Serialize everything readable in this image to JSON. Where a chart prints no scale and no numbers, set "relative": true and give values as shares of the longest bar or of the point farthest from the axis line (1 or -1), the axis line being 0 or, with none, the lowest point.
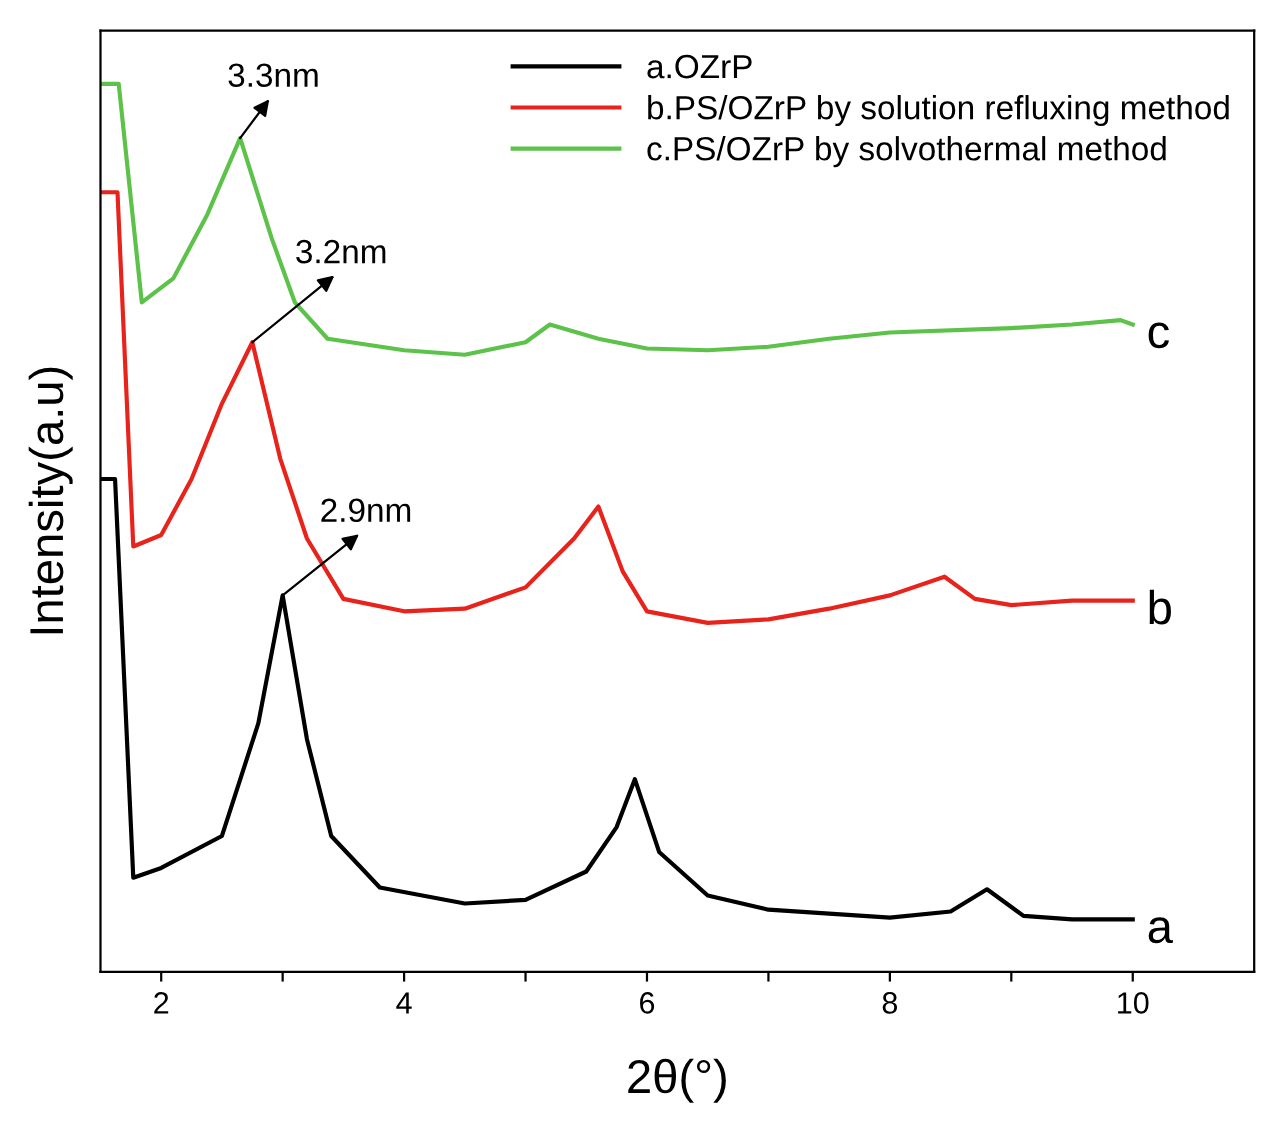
{
  "chart_data": {
    "type": "line",
    "relative": true,
    "xlabel": "2θ(°)",
    "ylabel": "Intensity(a.u)",
    "xlim": [
      1.5,
      11
    ],
    "xticks": [
      2,
      {
        "value": 3,
        "label": null
      },
      4,
      {
        "value": 5,
        "label": null
      },
      6,
      {
        "value": 7,
        "label": null
      },
      8,
      {
        "value": 9,
        "label": null
      },
      10
    ],
    "legend": "top right",
    "grid": false,
    "marker": "none",
    "line_style": "solid",
    "tick_labels": "x",
    "series": [
      {
        "name": "a.OZrP",
        "color": "#000000",
        "x": [
          1.5,
          1.62,
          1.77,
          2.0,
          2.5,
          2.8,
          3.0,
          3.2,
          3.4,
          3.8,
          4.5,
          5.0,
          5.5,
          5.75,
          5.9,
          6.1,
          6.5,
          7.0,
          8.0,
          8.5,
          8.8,
          9.1,
          9.5,
          10.0
        ],
        "values": [
          0.555,
          0.555,
          0.106,
          0.117,
          0.153,
          0.28,
          0.424,
          0.262,
          0.153,
          0.095,
          0.077,
          0.081,
          0.113,
          0.163,
          0.217,
          0.135,
          0.086,
          0.07,
          0.061,
          0.068,
          0.093,
          0.063,
          0.059,
          0.059
        ]
      },
      {
        "name": "b.PS/OZrP by solution refluxing method",
        "color": "#e8231c",
        "x": [
          1.5,
          1.64,
          1.77,
          2.0,
          2.25,
          2.5,
          2.75,
          2.98,
          3.2,
          3.5,
          4.0,
          4.5,
          5.0,
          5.4,
          5.6,
          5.8,
          6.0,
          6.5,
          7.0,
          7.5,
          8.0,
          8.45,
          8.7,
          9.0,
          9.5,
          10.0
        ],
        "values": [
          0.878,
          0.878,
          0.479,
          0.492,
          0.555,
          0.64,
          0.709,
          0.578,
          0.488,
          0.42,
          0.406,
          0.409,
          0.433,
          0.488,
          0.524,
          0.451,
          0.406,
          0.393,
          0.397,
          0.409,
          0.424,
          0.445,
          0.42,
          0.413,
          0.418,
          0.418
        ]
      },
      {
        "name": "c.PS/OZrP by solvothermal method",
        "color": "#5cc24a",
        "x": [
          1.5,
          1.65,
          1.84,
          2.1,
          2.38,
          2.65,
          2.91,
          3.1,
          3.37,
          4.0,
          4.5,
          5.0,
          5.2,
          5.6,
          6.0,
          6.5,
          7.0,
          7.5,
          8.0,
          9.0,
          9.5,
          9.9,
          10.0
        ],
        "values": [
          1.0,
          1.0,
          0.754,
          0.781,
          0.853,
          0.939,
          0.826,
          0.754,
          0.713,
          0.7,
          0.695,
          0.709,
          0.729,
          0.713,
          0.702,
          0.7,
          0.704,
          0.713,
          0.72,
          0.725,
          0.729,
          0.734,
          0.729
        ]
      }
    ],
    "annotations": [
      {
        "text": "3.3nm",
        "x": 2.65,
        "y": 0.939
      },
      {
        "text": "3.2nm",
        "x": 2.75,
        "y": 0.709
      },
      {
        "text": "2.9nm",
        "x": 3.0,
        "y": 0.424
      },
      {
        "text": "c",
        "x": 10.0,
        "y": 0.729
      },
      {
        "text": "b",
        "x": 10.0,
        "y": 0.418
      },
      {
        "text": "a",
        "x": 10.0,
        "y": 0.059
      }
    ]
  }
}
